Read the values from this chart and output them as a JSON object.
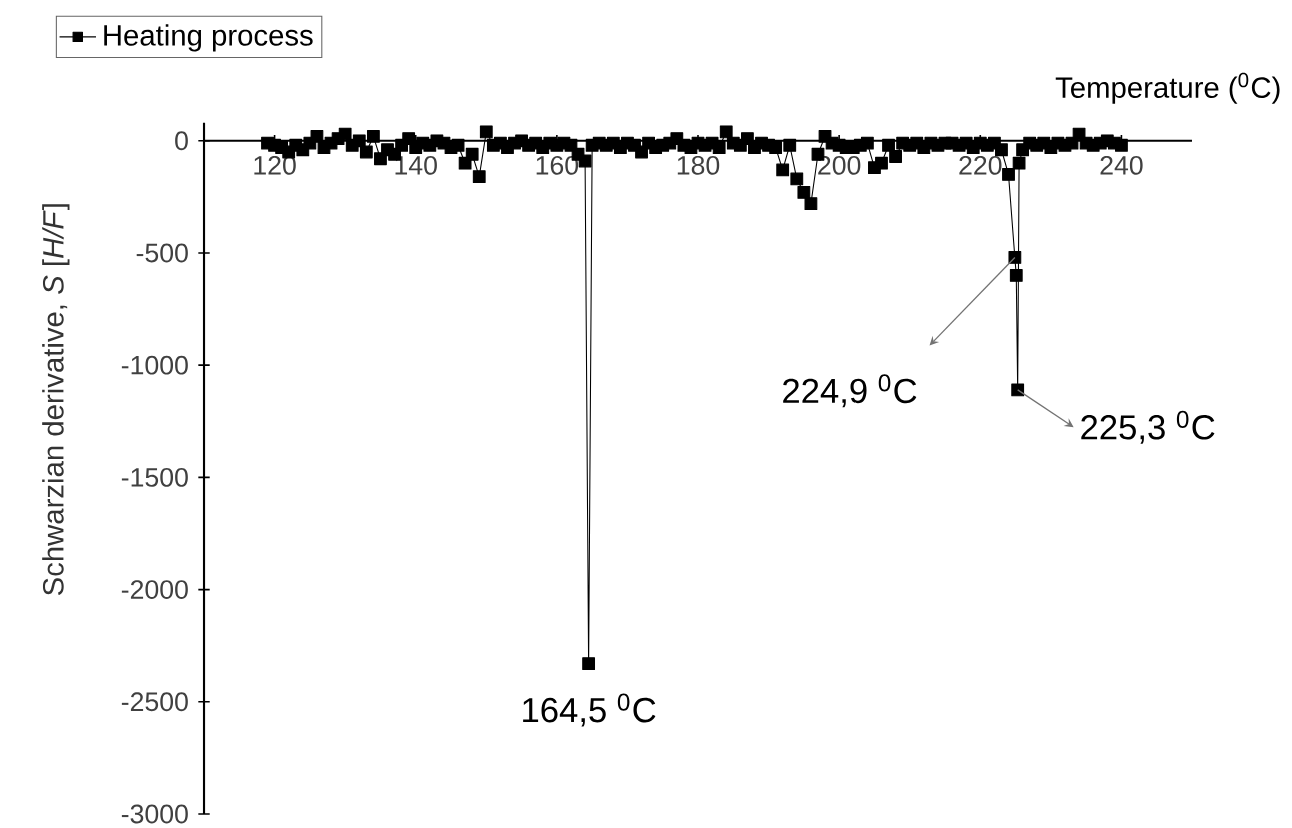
{
  "chart_data": {
    "type": "line",
    "xlabel": "Temperature ($^{0}$C)",
    "ylabel": "Schwarzian derivative, *S* [*H/F*]",
    "xlim": [
      110,
      250
    ],
    "ylim": [
      -3000,
      80
    ],
    "xticks": [
      120,
      140,
      160,
      180,
      200,
      220,
      240
    ],
    "yticks": [
      -3000,
      -2500,
      -2000,
      -1500,
      -1000,
      -500,
      0
    ],
    "legend": "top left",
    "marker": "square",
    "line_style": "solid",
    "grid": false,
    "x": [
      119,
      120,
      121,
      122,
      123,
      124,
      125,
      126,
      127,
      128,
      129,
      130,
      131,
      132,
      133,
      134,
      135,
      136,
      137,
      138,
      139,
      140,
      141,
      142,
      143,
      144,
      145,
      146,
      147,
      148,
      149,
      150,
      151,
      152,
      153,
      154,
      155,
      156,
      157,
      158,
      159,
      160,
      161,
      162,
      163,
      164,
      164.5,
      165,
      166,
      167,
      168,
      169,
      170,
      171,
      172,
      173,
      174,
      175,
      176,
      177,
      178,
      179,
      180,
      181,
      182,
      183,
      184,
      185,
      186,
      187,
      188,
      189,
      190,
      191,
      192,
      193,
      194,
      195,
      196,
      197,
      198,
      199,
      200,
      201,
      202,
      203,
      204,
      205,
      206,
      207,
      208,
      209,
      210,
      211,
      212,
      213,
      214,
      215,
      216,
      217,
      218,
      219,
      220,
      221,
      222,
      223,
      224,
      224.9,
      225.1,
      225.3,
      225.5,
      226,
      227,
      228,
      229,
      230,
      231,
      232,
      233,
      234,
      235,
      236,
      237,
      238,
      239,
      240
    ],
    "series": [
      {
        "name": "Heating process",
        "color": "#000000",
        "values": [
          -10,
          -20,
          -30,
          -50,
          -20,
          -40,
          -10,
          20,
          -30,
          -10,
          10,
          30,
          -20,
          0,
          -50,
          20,
          -80,
          -40,
          -60,
          -20,
          10,
          -30,
          -10,
          -20,
          0,
          -10,
          -30,
          -20,
          -100,
          -60,
          -160,
          40,
          -20,
          -10,
          -30,
          -10,
          0,
          -20,
          -10,
          -30,
          -10,
          -20,
          -10,
          -20,
          -60,
          -90,
          -2330,
          -20,
          -10,
          -20,
          -10,
          -30,
          -10,
          -20,
          -50,
          -10,
          -30,
          -20,
          -10,
          10,
          -20,
          -30,
          -10,
          -20,
          -10,
          -30,
          40,
          -10,
          -20,
          10,
          -30,
          -10,
          -20,
          -30,
          -130,
          -20,
          -170,
          -230,
          -280,
          -60,
          20,
          -10,
          -20,
          -30,
          -30,
          -20,
          -10,
          -120,
          -100,
          -20,
          -70,
          -10,
          -20,
          -10,
          -30,
          -10,
          -20,
          -10,
          -10,
          -20,
          -10,
          -30,
          -10,
          -20,
          -10,
          -40,
          -150,
          -520,
          -600,
          -1110,
          -100,
          -40,
          -10,
          -20,
          -10,
          -30,
          -10,
          -20,
          -10,
          30,
          -10,
          -20,
          -10,
          0,
          -10,
          -20
        ]
      }
    ],
    "annotations": [
      {
        "text": "164,5 $^{0}$C",
        "x": 164.5,
        "y": -2330
      },
      {
        "text": "224,9 $^{0}$C",
        "x": 224.9,
        "y": -520
      },
      {
        "text": "225,3 $^{0}$C",
        "x": 225.3,
        "y": -1110
      }
    ]
  }
}
